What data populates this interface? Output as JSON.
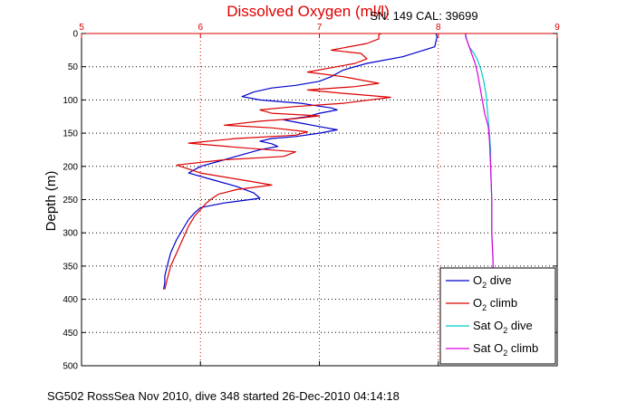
{
  "chart_data": {
    "type": "line",
    "title": "Dissolved Oxygen (ml/l)",
    "subtitle": "SN: 149  CAL: 39699",
    "footer": "SG502 RossSea Nov 2010, dive 348 started 26-Dec-2010 04:14:18",
    "xlabel": "",
    "ylabel": "Depth (m)",
    "xlim": [
      5,
      9
    ],
    "ylim": [
      0,
      500
    ],
    "y_reversed": true,
    "x_ticks": [
      "5",
      "6",
      "7",
      "8",
      "9"
    ],
    "y_ticks": [
      "0",
      "50",
      "100",
      "150",
      "200",
      "250",
      "300",
      "350",
      "400",
      "450",
      "500"
    ],
    "grid": true,
    "legend_position": "bottom-right",
    "legend": [
      {
        "base": "O",
        "sub": "2",
        "post": " dive"
      },
      {
        "base": "O",
        "sub": "2",
        "post": " climb"
      },
      {
        "pre": "Sat ",
        "base": "O",
        "sub": "2",
        "post": " dive"
      },
      {
        "pre": "Sat ",
        "base": "O",
        "sub": "2",
        "post": " climb"
      }
    ],
    "series": [
      {
        "name": "O2 dive",
        "color": "#0000cc",
        "style": "solid",
        "x": [
          7.98,
          7.99,
          7.97,
          7.7,
          7.4,
          7.2,
          7.1,
          7.0,
          6.8,
          6.6,
          6.45,
          6.35,
          6.5,
          6.7,
          6.85,
          6.95,
          7.1,
          7.15,
          7.0,
          6.9,
          6.7,
          6.85,
          7.0,
          7.15,
          7.0,
          6.8,
          6.6,
          6.5,
          6.6,
          6.65,
          6.5,
          6.4,
          6.2,
          6.0,
          5.9,
          6.1,
          6.3,
          6.45,
          6.5,
          6.2,
          6.0,
          5.95,
          5.9,
          5.85,
          5.8,
          5.75,
          5.72,
          5.7,
          5.7,
          5.69
        ],
        "y": [
          0,
          5,
          20,
          35,
          45,
          55,
          65,
          72,
          78,
          82,
          88,
          95,
          100,
          103,
          105,
          108,
          112,
          115,
          120,
          125,
          130,
          135,
          140,
          145,
          150,
          155,
          158,
          162,
          166,
          170,
          175,
          180,
          190,
          200,
          210,
          220,
          230,
          240,
          248,
          255,
          262,
          270,
          280,
          295,
          310,
          330,
          350,
          365,
          375,
          385
        ]
      },
      {
        "name": "O2 climb",
        "color": "#dd0000",
        "style": "solid",
        "x": [
          5.7,
          5.72,
          5.75,
          5.8,
          5.85,
          5.9,
          5.95,
          6.0,
          6.05,
          6.1,
          6.15,
          6.3,
          6.6,
          6.4,
          6.0,
          5.8,
          6.2,
          6.7,
          6.8,
          6.35,
          5.9,
          6.3,
          6.8,
          6.9,
          6.6,
          6.2,
          6.5,
          6.8,
          7.0,
          6.6,
          6.5,
          6.8,
          7.2,
          7.6,
          7.2,
          6.9,
          7.3,
          7.5,
          7.2,
          6.9,
          7.3,
          7.4,
          7.35,
          7.1,
          7.4,
          7.5,
          7.5,
          7.52
        ],
        "y": [
          385,
          370,
          350,
          330,
          310,
          290,
          275,
          265,
          255,
          248,
          242,
          235,
          228,
          222,
          210,
          198,
          190,
          185,
          178,
          172,
          165,
          158,
          153,
          148,
          142,
          138,
          132,
          128,
          124,
          120,
          115,
          110,
          105,
          96,
          90,
          85,
          80,
          75,
          65,
          58,
          45,
          38,
          30,
          25,
          15,
          8,
          2,
          0
        ]
      },
      {
        "name": "Sat O2 dive",
        "color": "#00cccc",
        "style": "solid",
        "x": [
          8.23,
          8.24,
          8.26,
          8.3,
          8.33,
          8.36,
          8.38,
          8.4,
          8.41,
          8.42,
          8.43,
          8.44,
          8.44,
          8.45,
          8.45,
          8.46,
          8.46,
          8.47
        ],
        "y": [
          0,
          10,
          20,
          30,
          40,
          55,
          70,
          90,
          110,
          130,
          150,
          175,
          200,
          250,
          300,
          340,
          370,
          385
        ]
      },
      {
        "name": "Sat O2 climb",
        "color": "#dd00dd",
        "style": "solid",
        "x": [
          8.47,
          8.46,
          8.46,
          8.45,
          8.45,
          8.44,
          8.43,
          8.42,
          8.39,
          8.37,
          8.35,
          8.33,
          8.31,
          8.28,
          8.25,
          8.23,
          8.23
        ],
        "y": [
          385,
          370,
          340,
          300,
          250,
          200,
          160,
          140,
          120,
          100,
          80,
          60,
          45,
          30,
          15,
          5,
          0
        ]
      }
    ]
  }
}
